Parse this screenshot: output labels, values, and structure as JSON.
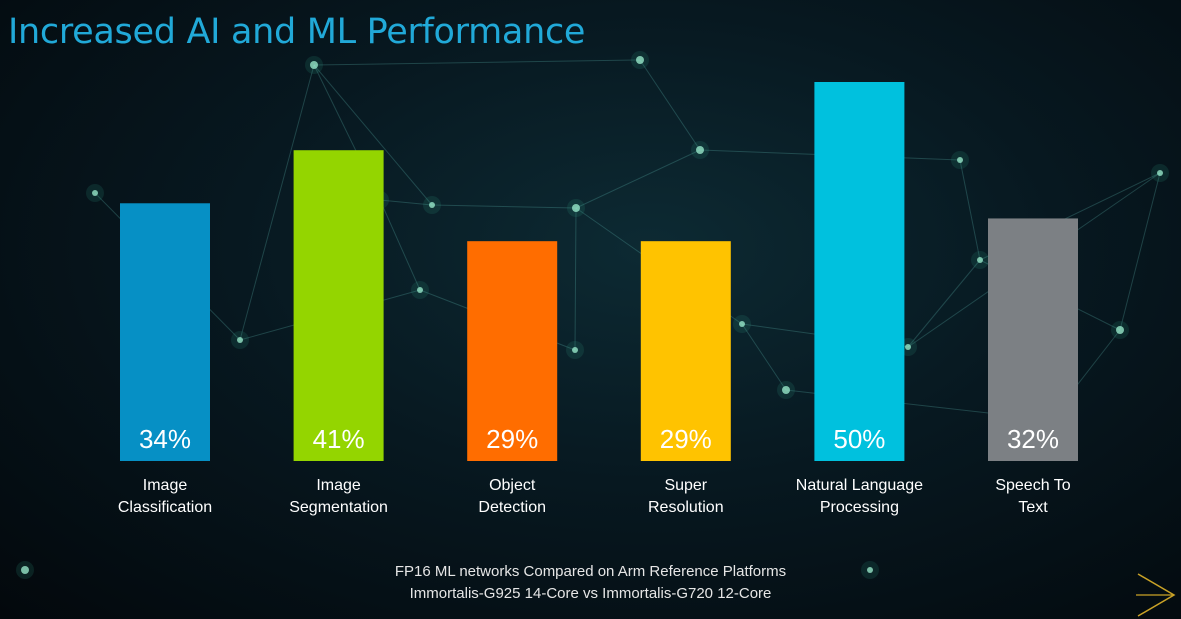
{
  "title": "Increased AI and ML Performance",
  "footnote": {
    "line1": "FP16 ML networks Compared on Arm Reference Platforms",
    "line2": "Immortalis-G925 14-Core vs Immortalis-G720 12-Core"
  },
  "colors": {
    "title": "#21a9d8",
    "value_label": "#ffffff",
    "category_label": "#ffffff",
    "arrow": "#c9a227"
  },
  "icons": {
    "next": "chevron-right-icon"
  },
  "chart_data": {
    "type": "bar",
    "title": "Increased AI and ML Performance",
    "categories": [
      [
        "Image",
        "Classification"
      ],
      [
        "Image",
        "Segmentation"
      ],
      [
        "Object",
        "Detection"
      ],
      [
        "Super",
        "Resolution"
      ],
      [
        "Natural Language",
        "Processing"
      ],
      [
        "Speech To",
        "Text"
      ]
    ],
    "values": [
      34,
      41,
      29,
      29,
      50,
      32
    ],
    "value_labels": [
      "34%",
      "41%",
      "29%",
      "29%",
      "50%",
      "32%"
    ],
    "bar_colors": [
      "#0690c5",
      "#94d500",
      "#ff6d00",
      "#ffc300",
      "#00c1de",
      "#7c8084"
    ],
    "ylim": [
      0,
      50
    ],
    "grid": false,
    "legend": "none",
    "xlabel": "",
    "ylabel": ""
  }
}
